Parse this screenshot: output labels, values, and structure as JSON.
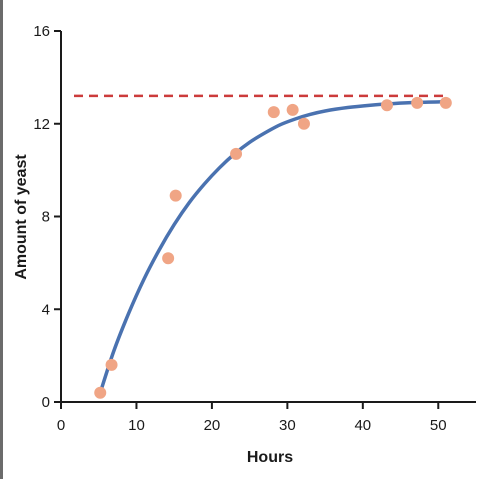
{
  "chart_data": {
    "type": "scatter",
    "xlabel": "Hours",
    "ylabel": "Amount of yeast",
    "xlim": [
      0,
      55
    ],
    "ylim": [
      0,
      16
    ],
    "x_ticks": [
      "0",
      "10",
      "20",
      "30",
      "40",
      "50"
    ],
    "y_ticks": [
      "0",
      "4",
      "8",
      "12",
      "16"
    ],
    "grid": false,
    "legend": "none",
    "carrying_capacity": 13.2,
    "series": [
      {
        "type": "scatter",
        "color": "#f0a585",
        "points": [
          {
            "x": 5.2,
            "y": 0.4
          },
          {
            "x": 6.7,
            "y": 1.6
          },
          {
            "x": 14.2,
            "y": 6.2
          },
          {
            "x": 15.2,
            "y": 8.9
          },
          {
            "x": 23.2,
            "y": 10.7
          },
          {
            "x": 28.2,
            "y": 12.5
          },
          {
            "x": 30.7,
            "y": 12.6
          },
          {
            "x": 32.2,
            "y": 12.0
          },
          {
            "x": 43.2,
            "y": 12.8
          },
          {
            "x": 47.2,
            "y": 12.9
          },
          {
            "x": 51.0,
            "y": 12.9
          }
        ]
      },
      {
        "type": "line",
        "color": "#4a72b0",
        "points": [
          {
            "x": 5.2,
            "y": 0.4
          },
          {
            "x": 7,
            "y": 2.2
          },
          {
            "x": 9,
            "y": 3.85
          },
          {
            "x": 11,
            "y": 5.3
          },
          {
            "x": 13,
            "y": 6.55
          },
          {
            "x": 15,
            "y": 7.65
          },
          {
            "x": 17,
            "y": 8.6
          },
          {
            "x": 19,
            "y": 9.4
          },
          {
            "x": 21,
            "y": 10.1
          },
          {
            "x": 23,
            "y": 10.7
          },
          {
            "x": 25,
            "y": 11.2
          },
          {
            "x": 27,
            "y": 11.6
          },
          {
            "x": 29,
            "y": 11.95
          },
          {
            "x": 31,
            "y": 12.2
          },
          {
            "x": 33,
            "y": 12.4
          },
          {
            "x": 35,
            "y": 12.55
          },
          {
            "x": 38,
            "y": 12.7
          },
          {
            "x": 41,
            "y": 12.8
          },
          {
            "x": 44,
            "y": 12.87
          },
          {
            "x": 47,
            "y": 12.92
          },
          {
            "x": 51,
            "y": 12.95
          }
        ]
      }
    ],
    "colors": {
      "axis": "#1a1a1a",
      "reference_line": "#cc3b3b"
    }
  }
}
